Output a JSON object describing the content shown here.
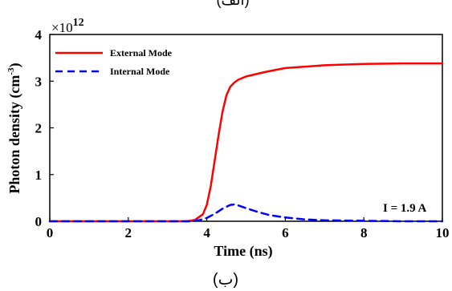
{
  "top_label": "(الف)",
  "panel_label": "(ب)",
  "chart_data": {
    "type": "line",
    "title": "",
    "xlabel": "Time (ns)",
    "ylabel_main": "Photon density (cm",
    "ylabel_sup": "-3",
    "ylabel_close": ")",
    "multiplier_base": "×10",
    "multiplier_exp": "12",
    "xlim": [
      0,
      10
    ],
    "ylim": [
      0,
      4
    ],
    "xticks": [
      0,
      2,
      4,
      6,
      8,
      10
    ],
    "yticks": [
      0,
      1,
      2,
      3,
      4
    ],
    "grid": false,
    "legend_position": "top-left",
    "annotation": "I = 1.9 A",
    "series": [
      {
        "name": "External Mode",
        "color": "#ff0000",
        "style": "solid",
        "x": [
          0,
          1,
          2,
          3,
          3.5,
          3.7,
          3.9,
          4.0,
          4.1,
          4.2,
          4.3,
          4.4,
          4.5,
          4.6,
          4.7,
          4.8,
          5.0,
          5.5,
          6.0,
          7.0,
          8.0,
          9.0,
          10.0
        ],
        "y": [
          0,
          0,
          0,
          0,
          0.0,
          0.03,
          0.15,
          0.35,
          0.75,
          1.3,
          1.85,
          2.35,
          2.7,
          2.88,
          2.97,
          3.03,
          3.1,
          3.2,
          3.28,
          3.34,
          3.37,
          3.38,
          3.38
        ]
      },
      {
        "name": "Internal Mode",
        "color": "#0000ff",
        "style": "dashed",
        "x": [
          0,
          1,
          2,
          3,
          3.6,
          3.8,
          4.0,
          4.2,
          4.4,
          4.6,
          4.7,
          4.8,
          5.0,
          5.3,
          5.6,
          6.0,
          6.5,
          7.0,
          8.0,
          9.0,
          10.0
        ],
        "y": [
          0,
          0,
          0,
          0,
          0.0,
          0.02,
          0.07,
          0.16,
          0.27,
          0.35,
          0.36,
          0.34,
          0.28,
          0.2,
          0.13,
          0.08,
          0.04,
          0.02,
          0.01,
          0.0,
          0.0
        ]
      }
    ]
  }
}
